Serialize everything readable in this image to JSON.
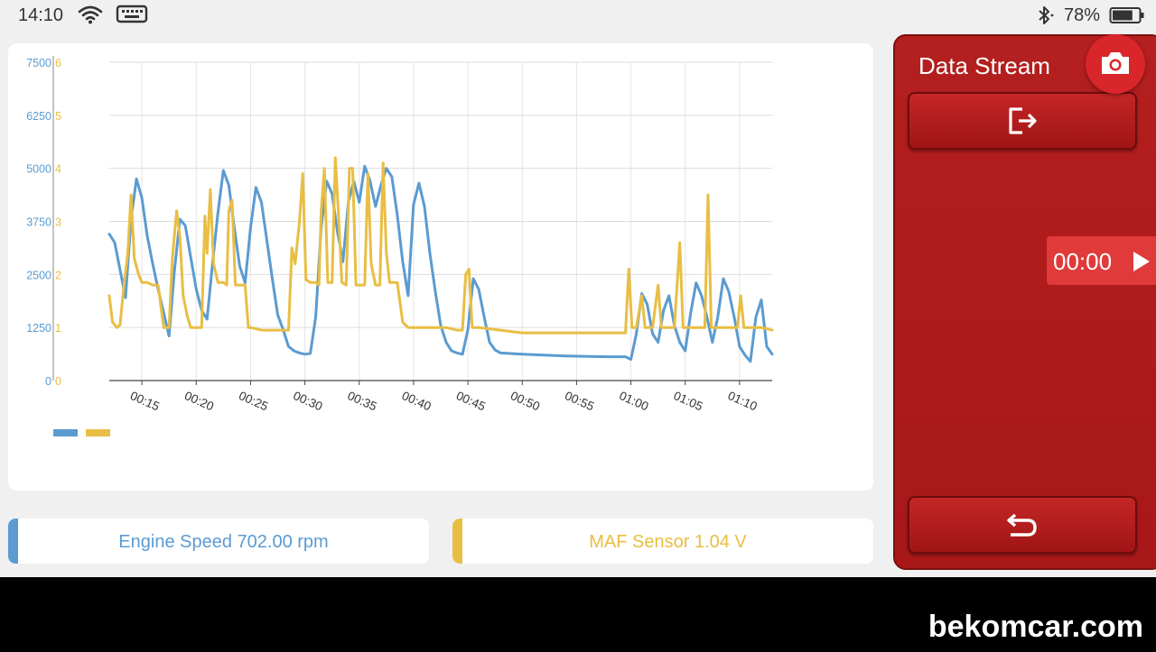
{
  "status_bar": {
    "time": "14:10",
    "battery_percent": "78%",
    "battery_level": 0.78,
    "icons": [
      "wifi-icon",
      "keyboard-icon",
      "bluetooth-icon",
      "battery-icon"
    ]
  },
  "panel": {
    "title": "Data Stream",
    "timer": "00:00",
    "icons": [
      "camera-icon",
      "export-icon",
      "play-icon",
      "back-icon"
    ]
  },
  "readouts": {
    "engine": "Engine Speed 702.00 rpm",
    "maf": "MAF Sensor 1.04 V"
  },
  "colors": {
    "engine": "#5b9bd1",
    "maf": "#e8be44",
    "accent_red": "#b01c1c",
    "camera": "#d9262a",
    "timer": "#e03a3a"
  },
  "watermark": "bekomcar.com",
  "chart_data": {
    "type": "line",
    "x_tick_labels": [
      "00:15",
      "00:20",
      "00:25",
      "00:30",
      "00:35",
      "00:40",
      "00:45",
      "00:50",
      "00:55",
      "01:00",
      "01:05",
      "01:10"
    ],
    "x_ticks_seconds": [
      15,
      20,
      25,
      30,
      35,
      40,
      45,
      50,
      55,
      60,
      65,
      70
    ],
    "xlim": [
      12,
      73
    ],
    "y_left": {
      "ticks": [
        0,
        1250,
        2500,
        3750,
        5000,
        6250,
        7500
      ],
      "tick_labels": [
        "0",
        "1250",
        "2500",
        "3750",
        "5000",
        "6250",
        "7500"
      ],
      "ylim": [
        0,
        7500
      ]
    },
    "y_right": {
      "ticks": [
        0,
        1,
        2,
        3,
        4,
        5,
        6
      ],
      "tick_labels": [
        "0",
        "1",
        "2",
        "3",
        "4",
        "5",
        "6"
      ],
      "ylim": [
        0,
        6
      ]
    },
    "grid": true,
    "legend": "bottom-left",
    "series": [
      {
        "axis": "left",
        "color": "#5b9bd1",
        "points": [
          [
            12.0,
            3450
          ],
          [
            12.5,
            3250
          ],
          [
            13.0,
            2600
          ],
          [
            13.5,
            1950
          ],
          [
            14.0,
            3800
          ],
          [
            14.5,
            4750
          ],
          [
            15.0,
            4300
          ],
          [
            15.5,
            3400
          ],
          [
            16.0,
            2750
          ],
          [
            16.5,
            2150
          ],
          [
            17.0,
            1600
          ],
          [
            17.5,
            1050
          ],
          [
            18.0,
            2600
          ],
          [
            18.5,
            3800
          ],
          [
            19.0,
            3650
          ],
          [
            19.5,
            2900
          ],
          [
            20.0,
            2150
          ],
          [
            20.5,
            1650
          ],
          [
            21.0,
            1450
          ],
          [
            21.5,
            2750
          ],
          [
            22.0,
            3950
          ],
          [
            22.5,
            4950
          ],
          [
            23.0,
            4600
          ],
          [
            23.5,
            3600
          ],
          [
            24.0,
            2700
          ],
          [
            24.5,
            2300
          ],
          [
            25.0,
            3600
          ],
          [
            25.5,
            4550
          ],
          [
            26.0,
            4200
          ],
          [
            26.5,
            3300
          ],
          [
            27.0,
            2400
          ],
          [
            27.5,
            1550
          ],
          [
            28.0,
            1200
          ],
          [
            28.5,
            800
          ],
          [
            29.0,
            700
          ],
          [
            29.5,
            650
          ],
          [
            30.0,
            620
          ],
          [
            30.5,
            640
          ],
          [
            31.0,
            1500
          ],
          [
            31.5,
            3600
          ],
          [
            32.0,
            4700
          ],
          [
            32.5,
            4400
          ],
          [
            33.0,
            3500
          ],
          [
            33.5,
            2800
          ],
          [
            34.0,
            4200
          ],
          [
            34.5,
            4700
          ],
          [
            35.0,
            4200
          ],
          [
            35.5,
            5050
          ],
          [
            36.0,
            4700
          ],
          [
            36.5,
            4100
          ],
          [
            37.0,
            4600
          ],
          [
            37.5,
            5000
          ],
          [
            38.0,
            4800
          ],
          [
            38.5,
            3900
          ],
          [
            39.0,
            2800
          ],
          [
            39.5,
            2000
          ],
          [
            40.0,
            4150
          ],
          [
            40.5,
            4650
          ],
          [
            41.0,
            4100
          ],
          [
            41.5,
            3000
          ],
          [
            42.0,
            2100
          ],
          [
            42.5,
            1300
          ],
          [
            43.0,
            900
          ],
          [
            43.5,
            700
          ],
          [
            44.0,
            650
          ],
          [
            44.5,
            620
          ],
          [
            45.0,
            1200
          ],
          [
            45.5,
            2400
          ],
          [
            46.0,
            2150
          ],
          [
            46.5,
            1500
          ],
          [
            47.0,
            900
          ],
          [
            47.5,
            720
          ],
          [
            48.0,
            650
          ],
          [
            50.0,
            620
          ],
          [
            52.0,
            600
          ],
          [
            54.0,
            580
          ],
          [
            56.0,
            570
          ],
          [
            58.0,
            560
          ],
          [
            59.5,
            560
          ],
          [
            60.0,
            500
          ],
          [
            60.5,
            1100
          ],
          [
            61.0,
            2050
          ],
          [
            61.5,
            1800
          ],
          [
            62.0,
            1100
          ],
          [
            62.5,
            900
          ],
          [
            63.0,
            1650
          ],
          [
            63.5,
            2000
          ],
          [
            64.0,
            1300
          ],
          [
            64.5,
            900
          ],
          [
            65.0,
            700
          ],
          [
            65.5,
            1600
          ],
          [
            66.0,
            2300
          ],
          [
            66.5,
            2000
          ],
          [
            67.0,
            1500
          ],
          [
            67.5,
            900
          ],
          [
            68.0,
            1500
          ],
          [
            68.5,
            2400
          ],
          [
            69.0,
            2100
          ],
          [
            69.5,
            1500
          ],
          [
            70.0,
            800
          ],
          [
            70.5,
            600
          ],
          [
            71.0,
            450
          ],
          [
            71.5,
            1500
          ],
          [
            72.0,
            1900
          ],
          [
            72.5,
            800
          ],
          [
            73.0,
            620
          ]
        ]
      },
      {
        "axis": "right",
        "color": "#e8be44",
        "points": [
          [
            12.0,
            1.6
          ],
          [
            12.3,
            1.1
          ],
          [
            12.7,
            1.0
          ],
          [
            13.0,
            1.05
          ],
          [
            13.3,
            1.7
          ],
          [
            13.7,
            2.4
          ],
          [
            14.0,
            3.5
          ],
          [
            14.3,
            2.3
          ],
          [
            14.7,
            2.0
          ],
          [
            15.0,
            1.85
          ],
          [
            15.5,
            1.85
          ],
          [
            16.0,
            1.8
          ],
          [
            16.5,
            1.8
          ],
          [
            17.0,
            1.0
          ],
          [
            17.5,
            1.0
          ],
          [
            17.8,
            2.3
          ],
          [
            18.2,
            3.2
          ],
          [
            18.5,
            2.7
          ],
          [
            18.8,
            1.6
          ],
          [
            19.2,
            1.2
          ],
          [
            19.5,
            1.0
          ],
          [
            20.0,
            1.0
          ],
          [
            20.5,
            1.0
          ],
          [
            20.8,
            3.1
          ],
          [
            21.0,
            2.4
          ],
          [
            21.3,
            3.6
          ],
          [
            21.6,
            2.2
          ],
          [
            22.0,
            1.85
          ],
          [
            22.5,
            1.85
          ],
          [
            22.8,
            1.8
          ],
          [
            23.0,
            3.2
          ],
          [
            23.3,
            3.4
          ],
          [
            23.6,
            1.8
          ],
          [
            24.0,
            1.8
          ],
          [
            24.5,
            1.8
          ],
          [
            24.8,
            1.0
          ],
          [
            25.0,
            1.0
          ],
          [
            26.0,
            0.95
          ],
          [
            27.0,
            0.95
          ],
          [
            28.0,
            0.95
          ],
          [
            28.5,
            0.95
          ],
          [
            28.8,
            2.5
          ],
          [
            29.1,
            2.2
          ],
          [
            29.5,
            3.0
          ],
          [
            29.8,
            3.9
          ],
          [
            30.1,
            1.9
          ],
          [
            30.5,
            1.85
          ],
          [
            31.0,
            1.85
          ],
          [
            31.3,
            1.8
          ],
          [
            31.5,
            3.2
          ],
          [
            31.8,
            4.0
          ],
          [
            32.1,
            1.85
          ],
          [
            32.5,
            1.85
          ],
          [
            32.8,
            4.2
          ],
          [
            33.1,
            3.1
          ],
          [
            33.4,
            1.85
          ],
          [
            33.8,
            1.8
          ],
          [
            34.1,
            4.0
          ],
          [
            34.4,
            4.0
          ],
          [
            34.7,
            1.8
          ],
          [
            35.0,
            1.8
          ],
          [
            35.5,
            1.8
          ],
          [
            35.8,
            3.9
          ],
          [
            36.1,
            2.2
          ],
          [
            36.5,
            1.8
          ],
          [
            36.9,
            1.8
          ],
          [
            37.2,
            4.1
          ],
          [
            37.5,
            2.4
          ],
          [
            37.8,
            1.85
          ],
          [
            38.1,
            1.85
          ],
          [
            38.5,
            1.85
          ],
          [
            39.0,
            1.1
          ],
          [
            39.5,
            1.0
          ],
          [
            40.0,
            1.0
          ],
          [
            41.0,
            1.0
          ],
          [
            42.0,
            1.0
          ],
          [
            43.0,
            1.0
          ],
          [
            44.0,
            0.95
          ],
          [
            44.5,
            0.95
          ],
          [
            44.8,
            2.0
          ],
          [
            45.1,
            2.1
          ],
          [
            45.4,
            1.0
          ],
          [
            46.0,
            1.0
          ],
          [
            48.0,
            0.95
          ],
          [
            50.0,
            0.9
          ],
          [
            52.0,
            0.9
          ],
          [
            54.0,
            0.9
          ],
          [
            56.0,
            0.9
          ],
          [
            58.0,
            0.9
          ],
          [
            59.5,
            0.9
          ],
          [
            59.8,
            2.1
          ],
          [
            60.1,
            1.0
          ],
          [
            60.5,
            1.0
          ],
          [
            61.0,
            1.6
          ],
          [
            61.3,
            1.0
          ],
          [
            62.0,
            1.0
          ],
          [
            62.5,
            1.8
          ],
          [
            62.8,
            1.0
          ],
          [
            63.5,
            1.0
          ],
          [
            64.0,
            1.0
          ],
          [
            64.5,
            2.6
          ],
          [
            64.8,
            1.0
          ],
          [
            65.3,
            1.0
          ],
          [
            65.5,
            1.0
          ],
          [
            66.0,
            1.0
          ],
          [
            66.5,
            1.0
          ],
          [
            66.8,
            1.0
          ],
          [
            67.1,
            3.5
          ],
          [
            67.4,
            1.0
          ],
          [
            67.8,
            1.0
          ],
          [
            68.0,
            1.0
          ],
          [
            68.5,
            1.0
          ],
          [
            69.0,
            1.0
          ],
          [
            69.8,
            1.0
          ],
          [
            70.1,
            1.6
          ],
          [
            70.4,
            1.0
          ],
          [
            71.0,
            1.0
          ],
          [
            72.0,
            1.0
          ],
          [
            73.0,
            0.95
          ]
        ]
      }
    ]
  }
}
